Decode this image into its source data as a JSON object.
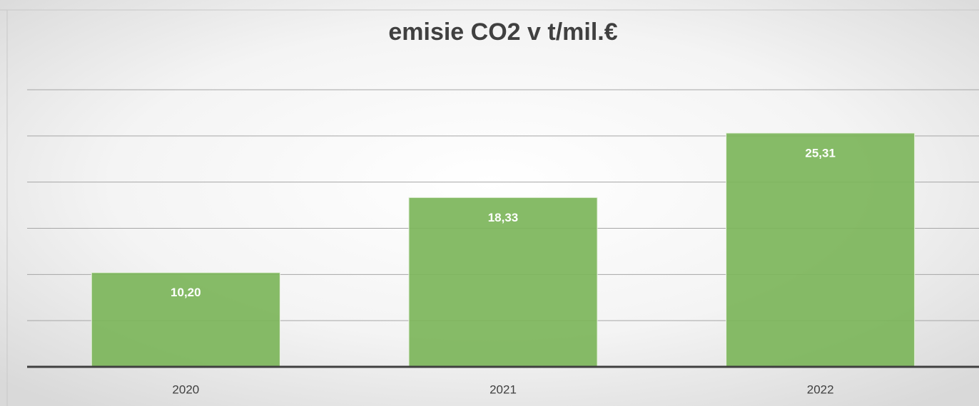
{
  "chart_data": {
    "type": "bar",
    "title": "emisie CO2 v t/mil.€",
    "categories": [
      "2020",
      "2021",
      "2022"
    ],
    "values": [
      10.2,
      18.33,
      25.31
    ],
    "value_labels": [
      "10,20",
      "18,33",
      "25,31"
    ],
    "color": "#7cb55a",
    "ylim": [
      0,
      30
    ],
    "yticks": [
      0,
      5,
      10,
      15,
      20,
      25,
      30
    ],
    "grid": true
  }
}
